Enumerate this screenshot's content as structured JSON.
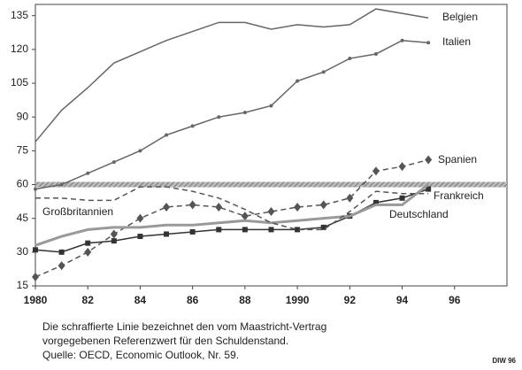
{
  "chart_data": {
    "type": "line",
    "x": [
      1980,
      1981,
      1982,
      1983,
      1984,
      1985,
      1986,
      1987,
      1988,
      1989,
      1990,
      1991,
      1992,
      1993,
      1994,
      1995
    ],
    "series": [
      {
        "name": "Belgien",
        "color": "#666666",
        "dash": false,
        "marker": "none",
        "values": [
          79,
          93,
          103,
          114,
          119,
          124,
          128,
          132,
          132,
          129,
          131,
          130,
          131,
          138,
          136,
          134
        ]
      },
      {
        "name": "Italien",
        "color": "#666666",
        "dash": false,
        "marker": "dot",
        "values": [
          58,
          60,
          65,
          70,
          75,
          82,
          86,
          90,
          92,
          95,
          106,
          110,
          116,
          118,
          124,
          123
        ]
      },
      {
        "name": "Spanien",
        "color": "#555555",
        "dash": true,
        "marker": "diamond",
        "values": [
          19,
          24,
          30,
          38,
          45,
          50,
          51,
          50,
          46,
          48,
          50,
          51,
          54,
          66,
          68,
          71
        ]
      },
      {
        "name": "Frankreich",
        "color": "#333333",
        "dash": false,
        "marker": "square",
        "values": [
          31,
          30,
          34,
          35,
          37,
          38,
          39,
          40,
          40,
          40,
          40,
          41,
          46,
          52,
          54,
          58
        ]
      },
      {
        "name": "Deutschland",
        "color": "#999999",
        "dash": false,
        "marker": "none",
        "values": [
          33,
          37,
          40,
          41,
          41,
          42,
          42,
          43,
          44,
          43,
          44,
          45,
          46,
          51,
          51,
          60
        ]
      },
      {
        "name": "Großbritannien",
        "color": "#555555",
        "dash": true,
        "marker": "none",
        "values": [
          54,
          54,
          53,
          53,
          59,
          59,
          57,
          54,
          49,
          43,
          40,
          40,
          48,
          57,
          56,
          56
        ]
      }
    ],
    "reference_line": 60,
    "xlim": [
      1980,
      1998
    ],
    "xticks": [
      1980,
      {
        "value": 1982,
        "label": "82"
      },
      {
        "value": 1984,
        "label": "84"
      },
      {
        "value": 1986,
        "label": "86"
      },
      {
        "value": 1988,
        "label": "88"
      },
      1990,
      {
        "value": 1992,
        "label": "92"
      },
      {
        "value": 1994,
        "label": "94"
      },
      {
        "value": 1996,
        "label": "96"
      }
    ],
    "ylim": [
      15,
      140
    ],
    "yticks": [
      15,
      30,
      45,
      60,
      75,
      90,
      105,
      120,
      135
    ],
    "caption": [
      "Die schraffierte Linie bezeichnet den vom Maastricht-Vertrag",
      "vorgegebenen Referenzwert für den Schuldenstand.",
      "Quelle: OECD, Economic Outlook, Nr. 59."
    ],
    "source_tag": "DIW 96"
  }
}
